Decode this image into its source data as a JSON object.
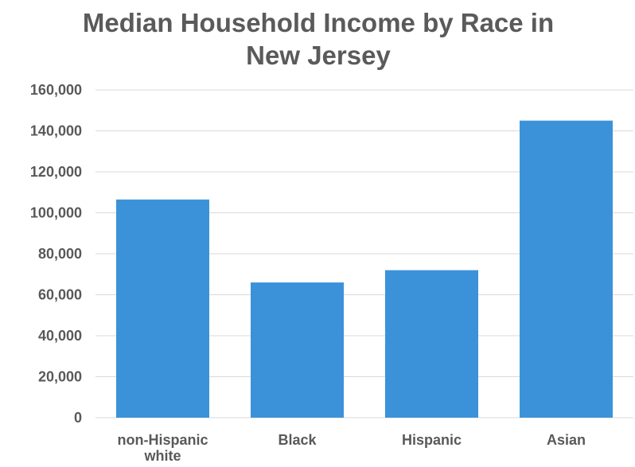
{
  "chart_data": {
    "type": "bar",
    "title_lines": [
      "Median Household Income by Race in",
      "New Jersey"
    ],
    "categories": [
      [
        "non-Hispanic",
        "white"
      ],
      [
        "Black"
      ],
      [
        "Hispanic"
      ],
      [
        "Asian"
      ]
    ],
    "values": [
      106500,
      66000,
      72000,
      145000
    ],
    "ylim": [
      0,
      160000
    ],
    "yticks": [
      0,
      20000,
      40000,
      60000,
      80000,
      100000,
      120000,
      140000,
      160000
    ],
    "ytick_labels": [
      "0",
      "20,000",
      "40,000",
      "60,000",
      "80,000",
      "100,000",
      "120,000",
      "140,000",
      "160,000"
    ],
    "grid": true,
    "bar_color": "#3b92d9",
    "grid_color": "#d9d9d9",
    "text_color": "#595959"
  }
}
